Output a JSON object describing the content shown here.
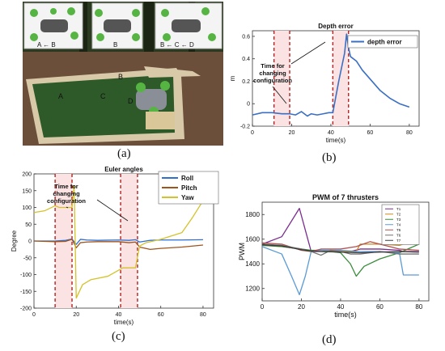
{
  "captions": {
    "a": "(a)",
    "b": "(b)",
    "c": "(c)",
    "d": "(d)"
  },
  "photo": {
    "labels": {
      "inset1": "A ← B",
      "inset2": "B",
      "inset3": "B ← C ← D",
      "pool_a": "A",
      "pool_b": "B",
      "pool_c": "C",
      "pool_d": "D"
    },
    "colors": {
      "sky": "#3b4a2c",
      "pool_water": "#2e5a2a",
      "pool_edge": "#d8c9a8",
      "deck": "#6b4f3a",
      "robot_body": "#8a8e96",
      "robot_fins": "#56b542"
    }
  },
  "chart_data": [
    {
      "type": "line",
      "title": "Depth error",
      "xlabel": "time(s)",
      "ylabel": "m",
      "xlim": [
        0,
        85
      ],
      "ylim": [
        -0.2,
        0.65
      ],
      "xticks": [
        0,
        20,
        40,
        60,
        80
      ],
      "yticks": [
        -0.2,
        0,
        0.2,
        0.4,
        0.6
      ],
      "ytick_labels": [
        "-0.2",
        "0",
        "0.2",
        "0.4",
        "0.6"
      ],
      "legend": [
        "depth error"
      ],
      "legend_position": "top-right",
      "annotation": "Time for changing configuration",
      "annotation_lines": [
        "Time for",
        "changing",
        "configuration"
      ],
      "highlight_spans": [
        [
          11,
          19
        ],
        [
          41,
          49
        ]
      ],
      "series": [
        {
          "name": "depth error",
          "color": "#3a6fc4",
          "x": [
            0,
            5,
            10,
            15,
            19,
            22,
            25,
            28,
            30,
            33,
            36,
            39,
            41,
            44,
            47,
            48,
            49,
            50,
            53,
            56,
            60,
            65,
            70,
            75,
            80
          ],
          "y": [
            -0.1,
            -0.08,
            -0.08,
            -0.09,
            -0.09,
            -0.1,
            -0.07,
            -0.11,
            -0.09,
            -0.1,
            -0.09,
            -0.08,
            -0.08,
            0.2,
            0.45,
            0.62,
            0.5,
            0.42,
            0.38,
            0.3,
            0.22,
            0.12,
            0.05,
            0.0,
            -0.03
          ]
        }
      ]
    },
    {
      "type": "line",
      "title": "Euler angles",
      "xlabel": "time(s)",
      "ylabel": "Degree",
      "xlim": [
        0,
        85
      ],
      "ylim": [
        -200,
        200
      ],
      "xticks": [
        0,
        20,
        40,
        60,
        80
      ],
      "yticks": [
        -200,
        -150,
        -100,
        -50,
        0,
        50,
        100,
        150,
        200
      ],
      "legend": [
        "Roll",
        "Pitch",
        "Yaw"
      ],
      "legend_position": "top-right",
      "annotation": "Time for changing configuration",
      "annotation_lines": [
        "Time for",
        "changing",
        "configuration"
      ],
      "highlight_spans": [
        [
          10,
          18
        ],
        [
          41,
          49
        ]
      ],
      "series": [
        {
          "name": "Roll",
          "color": "#2e6fcf",
          "x": [
            0,
            10,
            15,
            18,
            20,
            22,
            25,
            30,
            40,
            45,
            48,
            50,
            55,
            60,
            70,
            80
          ],
          "y": [
            0,
            0,
            2,
            6,
            -10,
            5,
            3,
            2,
            3,
            2,
            4,
            -3,
            2,
            3,
            3,
            4
          ]
        },
        {
          "name": "Pitch",
          "color": "#a0541c",
          "x": [
            0,
            10,
            15,
            18,
            20,
            22,
            25,
            30,
            40,
            45,
            48,
            50,
            55,
            60,
            70,
            80
          ],
          "y": [
            0,
            -2,
            -1,
            5,
            -20,
            -5,
            -3,
            -2,
            -2,
            -5,
            -3,
            -18,
            -25,
            -22,
            -18,
            -12
          ]
        },
        {
          "name": "Yaw",
          "color": "#d4c22a",
          "x": [
            0,
            5,
            10,
            12,
            18,
            19,
            20,
            23,
            27,
            35,
            42,
            48,
            50,
            53,
            60,
            65,
            70,
            75,
            80
          ],
          "y": [
            85,
            90,
            105,
            100,
            100,
            165,
            -170,
            -130,
            -115,
            -105,
            -80,
            -80,
            -15,
            -5,
            5,
            15,
            25,
            70,
            120
          ]
        }
      ]
    },
    {
      "type": "line",
      "title": "PWM of 7 thrusters",
      "xlabel": "time(s)",
      "ylabel": "PWM",
      "xlim": [
        0,
        85
      ],
      "ylim": [
        1100,
        1900
      ],
      "xticks": [
        0,
        20,
        40,
        60,
        80
      ],
      "yticks": [
        1200,
        1400,
        1600,
        1800
      ],
      "legend": [
        "T1",
        "T2",
        "T3",
        "T4",
        "T5",
        "T6",
        "T7"
      ],
      "legend_position": "top-right",
      "series": [
        {
          "name": "T1",
          "color": "#7b2c8f",
          "x": [
            0,
            10,
            19,
            25,
            30,
            35,
            40,
            45,
            50,
            60,
            70,
            72,
            80
          ],
          "y": [
            1560,
            1620,
            1850,
            1500,
            1500,
            1500,
            1500,
            1500,
            1520,
            1520,
            1510,
            1500,
            1500
          ]
        },
        {
          "name": "T2",
          "color": "#c88a1c",
          "x": [
            0,
            10,
            20,
            25,
            30,
            40,
            48,
            50,
            60,
            70,
            72,
            80
          ],
          "y": [
            1550,
            1540,
            1520,
            1500,
            1510,
            1500,
            1500,
            1560,
            1560,
            1550,
            1560,
            1590
          ]
        },
        {
          "name": "T3",
          "color": "#3a8c3a",
          "x": [
            0,
            10,
            20,
            25,
            30,
            40,
            45,
            48,
            52,
            60,
            70,
            80
          ],
          "y": [
            1550,
            1540,
            1520,
            1510,
            1510,
            1490,
            1400,
            1300,
            1380,
            1440,
            1490,
            1560
          ]
        },
        {
          "name": "T4",
          "color": "#5b9bd5",
          "x": [
            0,
            10,
            15,
            19,
            22,
            25,
            30,
            40,
            50,
            60,
            70,
            72,
            80
          ],
          "y": [
            1540,
            1480,
            1300,
            1150,
            1300,
            1500,
            1510,
            1510,
            1500,
            1500,
            1490,
            1310,
            1310
          ]
        },
        {
          "name": "T5",
          "color": "#b05050",
          "x": [
            0,
            10,
            20,
            25,
            30,
            40,
            48,
            55,
            60,
            65,
            70,
            80
          ],
          "y": [
            1570,
            1560,
            1510,
            1500,
            1520,
            1520,
            1540,
            1580,
            1560,
            1540,
            1520,
            1510
          ]
        },
        {
          "name": "T6",
          "color": "#707070",
          "x": [
            0,
            10,
            20,
            25,
            30,
            35,
            40,
            45,
            50,
            60,
            70,
            80
          ],
          "y": [
            1560,
            1550,
            1520,
            1500,
            1470,
            1510,
            1500,
            1480,
            1480,
            1500,
            1480,
            1480
          ]
        },
        {
          "name": "T7",
          "color": "#3b3b3b",
          "x": [
            0,
            10,
            20,
            25,
            30,
            40,
            50,
            60,
            70,
            80
          ],
          "y": [
            1555,
            1545,
            1515,
            1505,
            1500,
            1495,
            1490,
            1495,
            1500,
            1495
          ]
        }
      ]
    }
  ]
}
